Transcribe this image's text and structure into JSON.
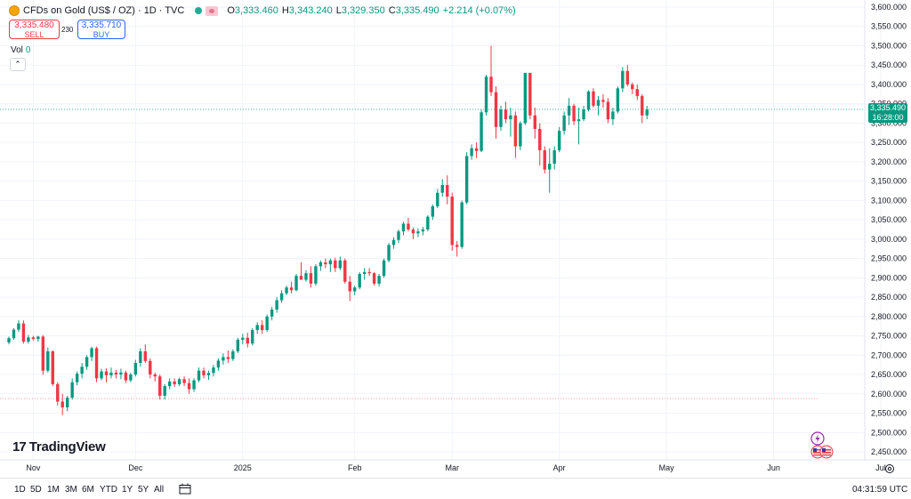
{
  "header": {
    "title": "CFDs on Gold (US$ / OZ) · 1D · TVC",
    "ohlc": {
      "o_label": "O",
      "o_value": "3,333.460",
      "h_label": "H",
      "h_value": "3,343.240",
      "l_label": "L",
      "l_value": "3,329.350",
      "c_label": "C",
      "c_value": "3,335.490",
      "change": "+2.214 (+0.07%)"
    }
  },
  "trade": {
    "sell_price": "3,335.480",
    "sell_label": "SELL",
    "spread": "230",
    "buy_price": "3,335.710",
    "buy_label": "BUY"
  },
  "volume": {
    "label": "Vol",
    "value": "0"
  },
  "collapse_glyph": "⌃",
  "last_price": {
    "price": "3,335.490",
    "countdown": "16:28:00"
  },
  "logo": {
    "text": "TradingView",
    "mark": "17"
  },
  "toolbar": {
    "ranges": [
      "1D",
      "5D",
      "1M",
      "3M",
      "6M",
      "YTD",
      "1Y",
      "5Y",
      "All"
    ],
    "clock": "04:31:59 UTC"
  },
  "colors": {
    "up": "#089981",
    "down": "#f23645",
    "grid": "#f0f3fa",
    "text": "#131722",
    "current_line": "#089981",
    "ref_line": "#f23645"
  },
  "chart_data": {
    "type": "candlestick",
    "title": "CFDs on Gold (US$ / OZ) · 1D · TVC",
    "xlabel": "",
    "ylabel": "",
    "ylim": [
      2440,
      3600
    ],
    "y_ticks": [
      "3,600.000",
      "3,550.000",
      "3,500.000",
      "3,450.000",
      "3,400.000",
      "3,350.000",
      "3,300.000",
      "3,250.000",
      "3,200.000",
      "3,150.000",
      "3,100.000",
      "3,050.000",
      "3,000.000",
      "2,950.000",
      "2,900.000",
      "2,850.000",
      "2,800.000",
      "2,750.000",
      "2,700.000",
      "2,650.000",
      "2,600.000",
      "2,550.000",
      "2,500.000",
      "2,450.000"
    ],
    "y_tick_values": [
      3600,
      3550,
      3500,
      3450,
      3400,
      3350,
      3300,
      3250,
      3200,
      3150,
      3100,
      3050,
      3000,
      2950,
      2900,
      2850,
      2800,
      2750,
      2700,
      2650,
      2600,
      2550,
      2500,
      2450
    ],
    "x_ticks": [
      {
        "label": "Nov",
        "index": 5
      },
      {
        "label": "Dec",
        "index": 26
      },
      {
        "label": "2025",
        "index": 48
      },
      {
        "label": "Feb",
        "index": 71
      },
      {
        "label": "Mar",
        "index": 91
      },
      {
        "label": "Apr",
        "index": 113
      },
      {
        "label": "May",
        "index": 135
      },
      {
        "label": "Jun",
        "index": 157
      },
      {
        "label": "Jul",
        "index": 179
      }
    ],
    "current_price": 3335.49,
    "reference_price": 2588,
    "candles": [
      [
        2733,
        2748,
        2728,
        2744
      ],
      [
        2744,
        2770,
        2740,
        2766
      ],
      [
        2766,
        2790,
        2760,
        2782
      ],
      [
        2782,
        2790,
        2730,
        2735
      ],
      [
        2735,
        2752,
        2730,
        2746
      ],
      [
        2746,
        2750,
        2738,
        2742
      ],
      [
        2742,
        2750,
        2735,
        2748
      ],
      [
        2748,
        2752,
        2650,
        2660
      ],
      [
        2660,
        2720,
        2655,
        2710
      ],
      [
        2710,
        2712,
        2620,
        2625
      ],
      [
        2625,
        2630,
        2570,
        2580
      ],
      [
        2580,
        2600,
        2545,
        2565
      ],
      [
        2565,
        2595,
        2555,
        2590
      ],
      [
        2590,
        2640,
        2585,
        2630
      ],
      [
        2630,
        2658,
        2622,
        2652
      ],
      [
        2652,
        2680,
        2640,
        2670
      ],
      [
        2670,
        2700,
        2662,
        2695
      ],
      [
        2695,
        2722,
        2685,
        2718
      ],
      [
        2718,
        2722,
        2630,
        2640
      ],
      [
        2640,
        2665,
        2635,
        2658
      ],
      [
        2658,
        2666,
        2630,
        2648
      ],
      [
        2648,
        2668,
        2640,
        2655
      ],
      [
        2655,
        2662,
        2640,
        2650
      ],
      [
        2650,
        2665,
        2638,
        2655
      ],
      [
        2655,
        2660,
        2628,
        2635
      ],
      [
        2635,
        2655,
        2630,
        2650
      ],
      [
        2650,
        2688,
        2645,
        2680
      ],
      [
        2680,
        2718,
        2670,
        2710
      ],
      [
        2710,
        2728,
        2680,
        2685
      ],
      [
        2685,
        2692,
        2640,
        2650
      ],
      [
        2650,
        2655,
        2632,
        2645
      ],
      [
        2645,
        2650,
        2585,
        2595
      ],
      [
        2595,
        2625,
        2585,
        2620
      ],
      [
        2620,
        2640,
        2612,
        2632
      ],
      [
        2632,
        2640,
        2618,
        2625
      ],
      [
        2625,
        2642,
        2620,
        2638
      ],
      [
        2638,
        2645,
        2620,
        2628
      ],
      [
        2628,
        2640,
        2600,
        2612
      ],
      [
        2612,
        2640,
        2605,
        2635
      ],
      [
        2635,
        2668,
        2630,
        2660
      ],
      [
        2660,
        2668,
        2640,
        2648
      ],
      [
        2648,
        2660,
        2636,
        2654
      ],
      [
        2654,
        2675,
        2645,
        2668
      ],
      [
        2668,
        2692,
        2660,
        2686
      ],
      [
        2686,
        2705,
        2675,
        2695
      ],
      [
        2695,
        2712,
        2680,
        2690
      ],
      [
        2690,
        2715,
        2685,
        2710
      ],
      [
        2710,
        2745,
        2705,
        2740
      ],
      [
        2740,
        2755,
        2728,
        2745
      ],
      [
        2745,
        2758,
        2720,
        2730
      ],
      [
        2730,
        2770,
        2725,
        2765
      ],
      [
        2765,
        2785,
        2755,
        2778
      ],
      [
        2778,
        2790,
        2755,
        2765
      ],
      [
        2765,
        2805,
        2760,
        2800
      ],
      [
        2800,
        2825,
        2790,
        2818
      ],
      [
        2818,
        2850,
        2810,
        2842
      ],
      [
        2842,
        2868,
        2835,
        2860
      ],
      [
        2860,
        2880,
        2855,
        2875
      ],
      [
        2875,
        2890,
        2860,
        2868
      ],
      [
        2868,
        2910,
        2865,
        2905
      ],
      [
        2905,
        2940,
        2895,
        2895
      ],
      [
        2895,
        2920,
        2890,
        2912
      ],
      [
        2912,
        2930,
        2875,
        2885
      ],
      [
        2885,
        2935,
        2880,
        2930
      ],
      [
        2930,
        2945,
        2918,
        2940
      ],
      [
        2940,
        2950,
        2925,
        2935
      ],
      [
        2935,
        2950,
        2915,
        2945
      ],
      [
        2945,
        2952,
        2915,
        2925
      ],
      [
        2925,
        2955,
        2920,
        2945
      ],
      [
        2945,
        2950,
        2885,
        2890
      ],
      [
        2890,
        2905,
        2840,
        2865
      ],
      [
        2865,
        2880,
        2855,
        2875
      ],
      [
        2875,
        2915,
        2870,
        2910
      ],
      [
        2910,
        2925,
        2895,
        2915
      ],
      [
        2915,
        2925,
        2905,
        2912
      ],
      [
        2912,
        2915,
        2880,
        2885
      ],
      [
        2885,
        2910,
        2878,
        2905
      ],
      [
        2905,
        2950,
        2900,
        2945
      ],
      [
        2945,
        2990,
        2940,
        2985
      ],
      [
        2985,
        3005,
        2975,
        2998
      ],
      [
        2998,
        3025,
        2990,
        3020
      ],
      [
        3020,
        3045,
        3010,
        3040
      ],
      [
        3040,
        3055,
        3020,
        3025
      ],
      [
        3025,
        3030,
        3000,
        3015
      ],
      [
        3015,
        3028,
        3005,
        3020
      ],
      [
        3020,
        3032,
        3010,
        3025
      ],
      [
        3025,
        3062,
        3020,
        3058
      ],
      [
        3058,
        3090,
        3050,
        3085
      ],
      [
        3085,
        3130,
        3080,
        3120
      ],
      [
        3120,
        3155,
        3110,
        3140
      ],
      [
        3140,
        3165,
        3090,
        3110
      ],
      [
        3110,
        3120,
        2970,
        2985
      ],
      [
        2985,
        2995,
        2955,
        2980
      ],
      [
        2980,
        3100,
        2975,
        3095
      ],
      [
        3095,
        3225,
        3090,
        3215
      ],
      [
        3215,
        3245,
        3205,
        3235
      ],
      [
        3235,
        3250,
        3210,
        3228
      ],
      [
        3228,
        3335,
        3225,
        3328
      ],
      [
        3328,
        3425,
        3320,
        3420
      ],
      [
        3420,
        3500,
        3370,
        3380
      ],
      [
        3380,
        3395,
        3260,
        3290
      ],
      [
        3290,
        3345,
        3280,
        3335
      ],
      [
        3335,
        3355,
        3300,
        3310
      ],
      [
        3310,
        3340,
        3265,
        3320
      ],
      [
        3320,
        3330,
        3210,
        3240
      ],
      [
        3240,
        3305,
        3230,
        3300
      ],
      [
        3300,
        3430,
        3295,
        3430
      ],
      [
        3430,
        3430,
        3310,
        3320
      ],
      [
        3320,
        3340,
        3260,
        3285
      ],
      [
        3285,
        3300,
        3190,
        3230
      ],
      [
        3230,
        3240,
        3170,
        3180
      ],
      [
        3180,
        3235,
        3120,
        3195
      ],
      [
        3195,
        3240,
        3180,
        3230
      ],
      [
        3230,
        3290,
        3225,
        3280
      ],
      [
        3280,
        3330,
        3270,
        3320
      ],
      [
        3320,
        3365,
        3295,
        3345
      ],
      [
        3345,
        3350,
        3295,
        3305
      ],
      [
        3305,
        3340,
        3245,
        3310
      ],
      [
        3310,
        3345,
        3305,
        3335
      ],
      [
        3335,
        3385,
        3330,
        3382
      ],
      [
        3382,
        3390,
        3340,
        3345
      ],
      [
        3345,
        3370,
        3320,
        3360
      ],
      [
        3360,
        3375,
        3340,
        3355
      ],
      [
        3355,
        3365,
        3300,
        3310
      ],
      [
        3310,
        3340,
        3295,
        3330
      ],
      [
        3330,
        3395,
        3325,
        3390
      ],
      [
        3390,
        3445,
        3380,
        3435
      ],
      [
        3435,
        3450,
        3395,
        3400
      ],
      [
        3400,
        3405,
        3375,
        3388
      ],
      [
        3388,
        3400,
        3360,
        3370
      ],
      [
        3370,
        3375,
        3300,
        3320
      ],
      [
        3320,
        3345,
        3310,
        3335
      ]
    ]
  }
}
